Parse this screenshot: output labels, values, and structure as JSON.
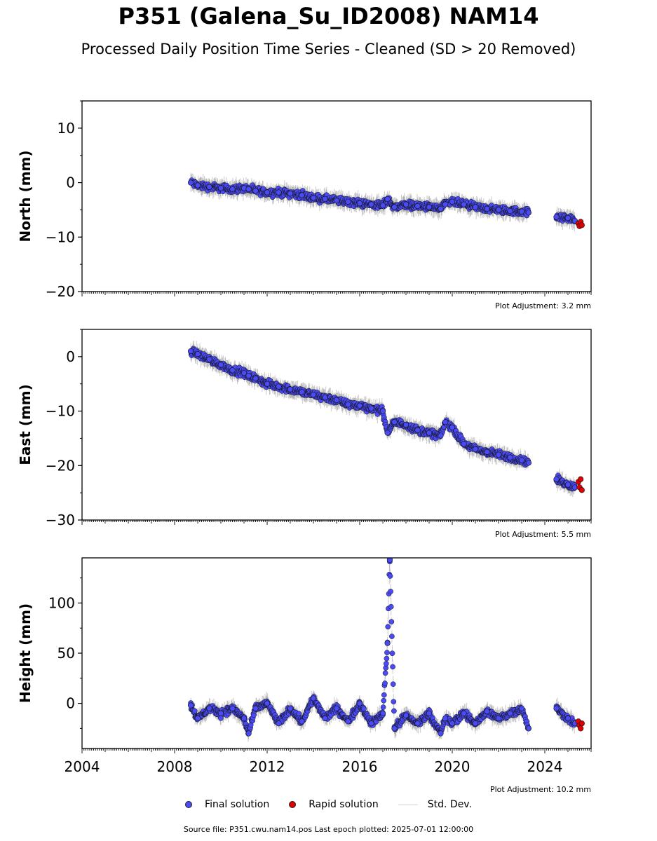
{
  "title": "P351 (Galena_Su_ID2008) NAM14",
  "subtitle": "Processed Daily Position Time Series - Cleaned (SD > 20 Removed)",
  "source_note": "Source file: P351.cwu.nam14.pos  Last epoch plotted: 2025-07-01 12:00:00",
  "legend": {
    "final": "Final solution",
    "rapid": "Rapid solution",
    "std": "Std. Dev."
  },
  "colors": {
    "final": "#4b4bf5",
    "rapid": "#e00000",
    "std": "#c8c8c8",
    "stroke": "#111111"
  },
  "chart_data": [
    {
      "type": "scatter",
      "ylabel": "North (mm)",
      "adjustment": "Plot Adjustment: 3.2 mm",
      "xlim": [
        2004,
        2026
      ],
      "ylim": [
        -20,
        15
      ],
      "yticks": [
        10,
        0,
        -10,
        -20
      ],
      "ytick_labels": [
        "10",
        "0",
        "−10",
        "−20"
      ],
      "x": [
        2008.7,
        2009.0,
        2009.5,
        2010.0,
        2010.5,
        2011.0,
        2011.2,
        2011.5,
        2012.0,
        2012.5,
        2013.0,
        2013.5,
        2014.0,
        2014.5,
        2015.0,
        2015.5,
        2016.0,
        2016.5,
        2017.0,
        2017.2,
        2017.5,
        2018.0,
        2018.5,
        2019.0,
        2019.5,
        2019.7,
        2020.0,
        2020.5,
        2021.0,
        2021.5,
        2022.0,
        2022.5,
        2023.0,
        2023.3,
        2024.5,
        2025.0,
        2025.3
      ],
      "y": [
        0.0,
        -0.5,
        -0.8,
        -1.0,
        -1.2,
        -1.0,
        -1.2,
        -1.5,
        -1.8,
        -1.8,
        -2.0,
        -2.3,
        -2.8,
        -3.0,
        -3.3,
        -3.5,
        -3.8,
        -4.0,
        -4.2,
        -3.0,
        -4.5,
        -4.0,
        -4.3,
        -4.5,
        -4.8,
        -4.0,
        -3.5,
        -4.0,
        -4.5,
        -4.8,
        -5.0,
        -5.2,
        -5.3,
        -5.5,
        -6.3,
        -6.5,
        -7.0
      ],
      "rapid_x": [
        2025.45,
        2025.5,
        2025.55,
        2025.6
      ],
      "rapid_y": [
        -7.5,
        -8.0,
        -7.2,
        -7.8
      ]
    },
    {
      "type": "scatter",
      "ylabel": "East (mm)",
      "adjustment": "Plot Adjustment: 5.5 mm",
      "xlim": [
        2004,
        2026
      ],
      "ylim": [
        -30,
        5
      ],
      "yticks": [
        0,
        -10,
        -20,
        -30
      ],
      "ytick_labels": [
        "0",
        "−10",
        "−20",
        "−30"
      ],
      "x": [
        2008.7,
        2009.0,
        2009.5,
        2010.0,
        2010.5,
        2011.0,
        2011.2,
        2011.5,
        2012.0,
        2012.5,
        2013.0,
        2013.5,
        2014.0,
        2014.5,
        2015.0,
        2015.5,
        2016.0,
        2016.5,
        2017.0,
        2017.2,
        2017.5,
        2018.0,
        2018.5,
        2019.0,
        2019.5,
        2019.7,
        2020.0,
        2020.5,
        2021.0,
        2021.5,
        2022.0,
        2022.5,
        2023.0,
        2023.3,
        2024.5,
        2025.0,
        2025.3
      ],
      "y": [
        1.0,
        0.5,
        -0.5,
        -1.5,
        -2.5,
        -3.0,
        -3.5,
        -4.0,
        -5.0,
        -5.5,
        -6.0,
        -6.5,
        -7.0,
        -7.5,
        -8.0,
        -8.8,
        -9.0,
        -9.5,
        -10.0,
        -14.0,
        -12.0,
        -12.5,
        -13.5,
        -14.0,
        -14.5,
        -12.0,
        -13.0,
        -16.0,
        -17.0,
        -17.5,
        -18.0,
        -18.5,
        -19.0,
        -19.5,
        -22.5,
        -23.5,
        -24.0
      ],
      "rapid_x": [
        2025.45,
        2025.5,
        2025.55,
        2025.6
      ],
      "rapid_y": [
        -23.0,
        -24.0,
        -22.5,
        -24.5
      ]
    },
    {
      "type": "scatter",
      "ylabel": "Height (mm)",
      "adjustment": "Plot Adjustment: 10.2 mm",
      "xlim": [
        2004,
        2026
      ],
      "ylim": [
        -45,
        145
      ],
      "yticks": [
        100,
        50,
        0
      ],
      "ytick_labels": [
        "100",
        "50",
        "0"
      ],
      "xticks": [
        2004,
        2008,
        2012,
        2016,
        2020,
        2024
      ],
      "xtick_labels": [
        "2004",
        "2008",
        "2012",
        "2016",
        "2020",
        "2024"
      ],
      "x": [
        2008.7,
        2009.0,
        2009.5,
        2010.0,
        2010.5,
        2011.0,
        2011.2,
        2011.5,
        2012.0,
        2012.5,
        2013.0,
        2013.5,
        2014.0,
        2014.5,
        2015.0,
        2015.5,
        2016.0,
        2016.5,
        2017.0,
        2017.2,
        2017.3,
        2017.5,
        2018.0,
        2018.5,
        2019.0,
        2019.5,
        2019.7,
        2020.0,
        2020.5,
        2021.0,
        2021.5,
        2022.0,
        2022.5,
        2023.0,
        2023.3,
        2024.5,
        2025.0,
        2025.3
      ],
      "y": [
        -2,
        -15,
        -5,
        -10,
        -5,
        -15,
        -30,
        -5,
        0,
        -20,
        -5,
        -18,
        5,
        -15,
        -5,
        -18,
        0,
        -20,
        -10,
        60,
        143,
        -25,
        -12,
        -20,
        -10,
        -30,
        -15,
        -20,
        -10,
        -20,
        -8,
        -15,
        -10,
        -5,
        -25,
        -5,
        -15,
        -20
      ],
      "rapid_x": [
        2025.45,
        2025.5,
        2025.55,
        2025.6
      ],
      "rapid_y": [
        -18,
        -22,
        -25,
        -20
      ]
    }
  ]
}
